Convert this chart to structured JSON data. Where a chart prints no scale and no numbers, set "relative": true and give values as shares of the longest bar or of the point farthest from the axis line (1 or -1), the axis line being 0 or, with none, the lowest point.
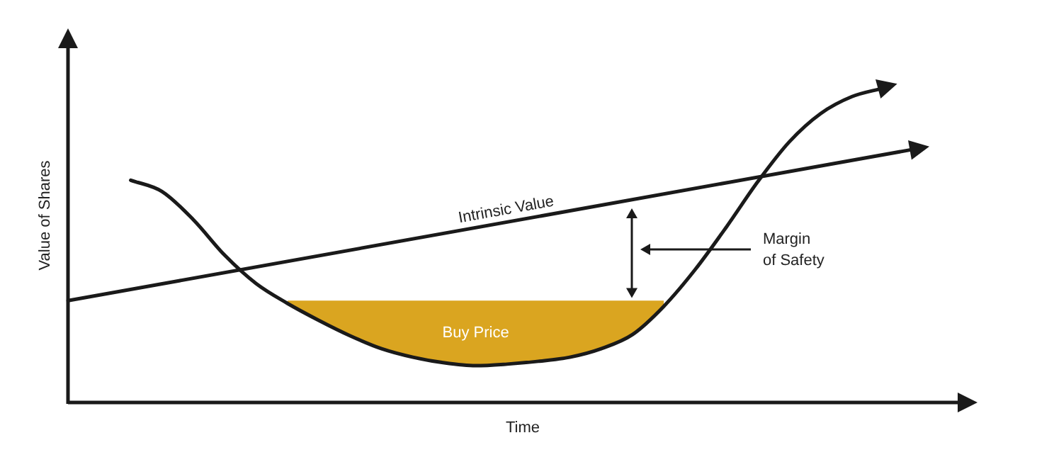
{
  "chart_data": {
    "type": "line",
    "relative": true,
    "xlabel": "Time",
    "ylabel": "Value of Shares",
    "categories": [
      null,
      null,
      null,
      null,
      null,
      null,
      null,
      null,
      null,
      null,
      null,
      null,
      null,
      null,
      null,
      null,
      null,
      null,
      null,
      null,
      null,
      null,
      null,
      null,
      null,
      null,
      null,
      null,
      null,
      null
    ],
    "series": [
      {
        "name": "Intrinsic Value",
        "color": "#1a1a1a",
        "values": [
          0.324,
          null,
          null,
          null,
          null,
          null,
          null,
          null,
          null,
          null,
          null,
          null,
          null,
          null,
          null,
          null,
          null,
          null,
          null,
          null,
          null,
          null,
          null,
          null,
          null,
          null,
          null,
          0.806,
          null,
          null
        ]
      },
      {
        "color": "#1a1a1a",
        "values": [
          null,
          null,
          0.707,
          0.671,
          0.581,
          0.468,
          0.378,
          0.315,
          0.261,
          0.212,
          0.171,
          0.144,
          0.126,
          0.117,
          0.122,
          0.131,
          0.144,
          0.171,
          0.216,
          0.306,
          0.423,
          0.559,
          0.703,
          0.829,
          0.919,
          0.973,
          1,
          null,
          null,
          null
        ],
        "lower": [
          null,
          null,
          null,
          null,
          null,
          null,
          null,
          0.315,
          0.261,
          0.212,
          0.171,
          0.144,
          0.126,
          0.117,
          0.122,
          0.131,
          0.144,
          0.171,
          0.216,
          0.306,
          null,
          null,
          null,
          null,
          null,
          null,
          null,
          null,
          null,
          null
        ],
        "upper": [
          null,
          null,
          null,
          null,
          null,
          null,
          null,
          0.324,
          0.324,
          0.324,
          0.324,
          0.324,
          0.324,
          0.324,
          0.324,
          0.324,
          0.324,
          0.324,
          0.324,
          0.324,
          null,
          null,
          null,
          null,
          null,
          null,
          null,
          null,
          null,
          null
        ]
      }
    ],
    "annotations": [
      "Buy Price",
      "Margin of Safety"
    ],
    "legend": false,
    "line_style": "solid"
  }
}
